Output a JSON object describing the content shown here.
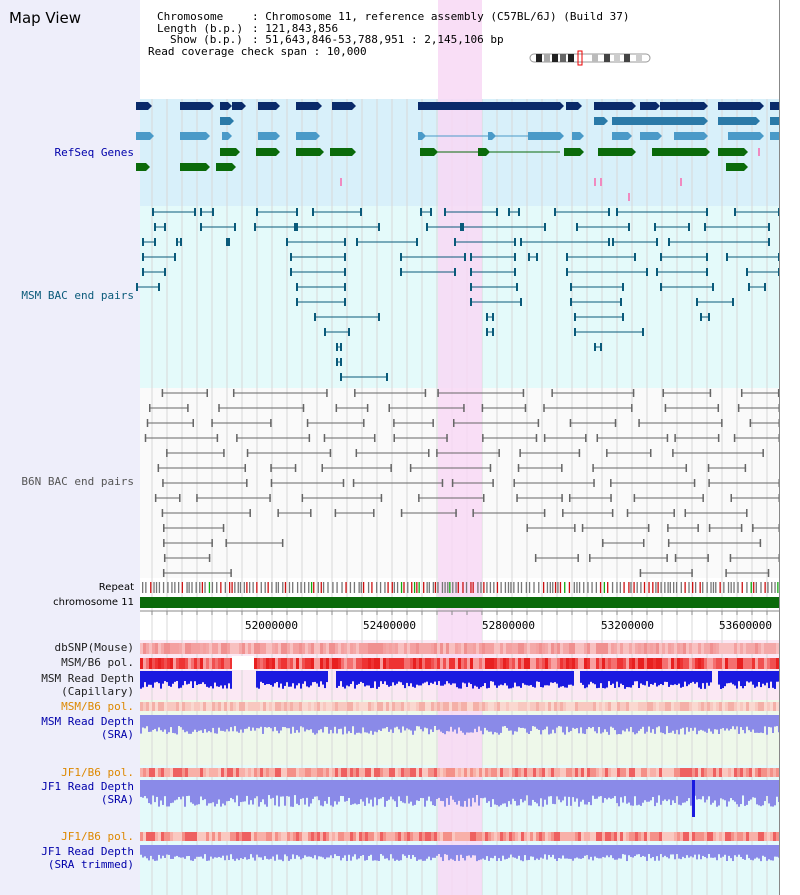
{
  "title": "Map View",
  "info": [
    {
      "key": "Chromosome",
      "sep": ":",
      "value": "Chromosome 11, reference assembly (C57BL/6J) (Build 37)"
    },
    {
      "key": "Length (b.p.)",
      "sep": ":",
      "value": "121,843,856"
    },
    {
      "key": "Show (b.p.)",
      "sep": ":",
      "value": "51,643,846-53,788,951 : 2,145,106 bp"
    },
    {
      "key": "Read coverage check span",
      "sep": ":",
      "value": "10,000"
    }
  ],
  "tracks": {
    "refseq": "RefSeq Genes",
    "msm_bac": "MSM BAC end pairs",
    "b6n_bac": "B6N BAC end pairs",
    "repeat": "Repeat",
    "chromosome": "chromosome 11",
    "dbsnp": "dbSNP(Mouse)",
    "msm_b6_pol": "MSM/B6 pol.",
    "msm_depth_cap_1": "MSM Read Depth",
    "msm_depth_cap_2": "(Capillary)",
    "msm_b6_pol_2": "MSM/B6 pol.",
    "msm_depth_sra_1": "MSM Read Depth",
    "msm_depth_sra_2": "(SRA)",
    "jf1_b6_pol": "JF1/B6 pol.",
    "jf1_depth_sra_1": "JF1 Read Depth",
    "jf1_depth_sra_2": "(SRA)",
    "jf1_b6_pol_2": "JF1/B6 pol.",
    "jf1_depth_trim_1": "JF1 Read Depth",
    "jf1_depth_trim_2": "(SRA trimmed)"
  },
  "axis": {
    "ticks": [
      "52000000",
      "52400000",
      "52800000",
      "53200000",
      "53600000"
    ]
  },
  "colors": {
    "refseq_bg": "#d8f0fa",
    "msm_bg": "#e4fafa",
    "b6n_bg": "#fafafa",
    "highlight": "#f8d8f4",
    "gene_dark": "#0a2a6a",
    "gene_mid": "#2a7aa8",
    "gene_light": "#4a9ac8",
    "gene_green": "#0a6a0a",
    "msm_line": "#0a5a7a",
    "b6n_line": "#666666",
    "depth_blue": "#1a1ae0",
    "depth_light": "#8a8ae8",
    "label_blue": "#0000aa",
    "label_orange": "#dd8800",
    "label_black": "#222222"
  }
}
